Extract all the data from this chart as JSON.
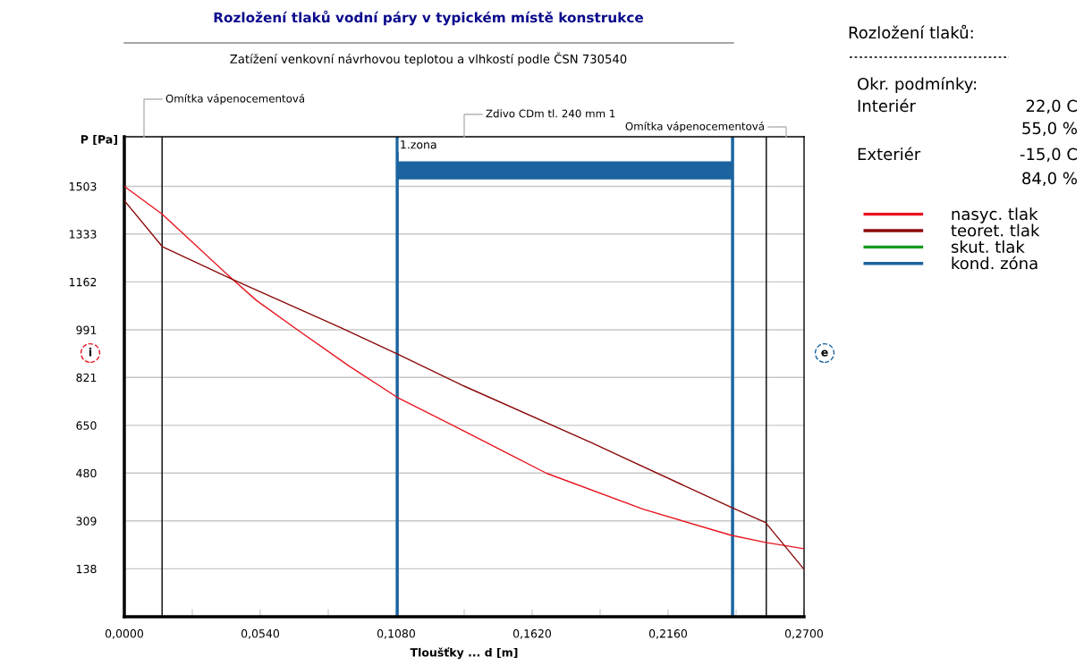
{
  "chart_data": {
    "type": "line",
    "title": "Rozložení tlaků vodní páry v typickém místě konstrukce",
    "subtitle": "Zatížení venkovní návrhovou teplotou a vlhkostí podle ČSN 730540",
    "xlabel": "Tloušťky ... d [m]",
    "ylabel": "P [Pa]",
    "xlim": [
      0,
      0.27
    ],
    "ylim": [
      -33,
      1680
    ],
    "xticks": [
      {
        "value": 0,
        "label": "0,0000"
      },
      {
        "value": 0.027,
        "label": null
      },
      {
        "value": 0.054,
        "label": "0,0540"
      },
      {
        "value": 0.081,
        "label": null
      },
      {
        "value": 0.108,
        "label": "0,1080"
      },
      {
        "value": 0.135,
        "label": null
      },
      {
        "value": 0.162,
        "label": "0,1620"
      },
      {
        "value": 0.189,
        "label": null
      },
      {
        "value": 0.216,
        "label": "0,2160"
      },
      {
        "value": 0.243,
        "label": null
      },
      {
        "value": 0.27,
        "label": "0,2700"
      }
    ],
    "yticks": [
      138,
      309,
      480,
      650,
      821,
      991,
      1162,
      1333,
      1503
    ],
    "grid": "y",
    "legend": "right",
    "marker": "none",
    "line_style": "solid",
    "series": [
      {
        "name": "nasyc. tlak",
        "color": "#e8141e",
        "x": [
          0,
          0.015,
          0.043,
          0.0526,
          0.0689,
          0.0892,
          0.1084,
          0.1331,
          0.1677,
          0.2063,
          0.2409,
          0.2547,
          0.2698
        ],
        "values": [
          1503,
          1404,
          1171,
          1095,
          990,
          862,
          750,
          638,
          479,
          350,
          258,
          232,
          210
        ]
      },
      {
        "name": "teoret. tlak",
        "color": "#8b0a0a",
        "x": [
          0,
          0.0152,
          0.043,
          0.0856,
          0.1087,
          0.135,
          0.186,
          0.2409,
          0.2547,
          0.2698
        ],
        "values": [
          1452,
          1287,
          1171,
          1000,
          904,
          790,
          586,
          358,
          303,
          138
        ]
      },
      {
        "name": "skut. tlak",
        "color": "#119a1e"
      },
      {
        "name": "kond. zóna",
        "color": "#1b64a0",
        "x": [
          0.1084,
          0.2416
        ],
        "values": [
          null,
          null
        ],
        "lower": [
          1528,
          1528
        ],
        "upper": [
          1592,
          1592
        ]
      }
    ],
    "ref_lines": [
      {
        "axis": "x",
        "value": 0.015,
        "color": "#000000"
      },
      {
        "axis": "x",
        "value": 0.255,
        "color": "#000000"
      },
      {
        "axis": "x",
        "value": 0.1084,
        "color": "#1b64a0"
      },
      {
        "axis": "x",
        "value": 0.2416,
        "color": "#1b64a0"
      }
    ],
    "annotations": [
      "i",
      "e",
      "Rozložení tlaků:",
      "Okr. podmínky:",
      "Interiér",
      "22,0 C",
      "55,0 %",
      "Exteriér",
      "-15,0 C",
      "84,0 %",
      "Omítka vápenocementová",
      "Zdivo CDm tl. 240 mm 1",
      "Omítka vápenocementová",
      {
        "text": "1.zona",
        "x": 0.1084,
        "y": 1560
      }
    ]
  }
}
